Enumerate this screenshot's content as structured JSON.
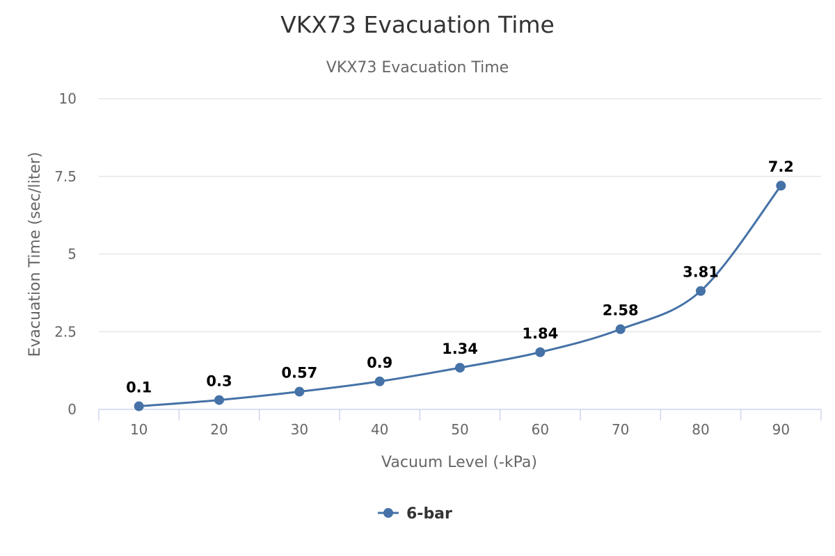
{
  "chart_data": {
    "type": "line",
    "title": "VKX73 Evacuation Time",
    "subtitle": "VKX73 Evacuation Time",
    "xlabel": "Vacuum Level (-kPa)",
    "ylabel": "Evacuation Time (sec/liter)",
    "categories": [
      "10",
      "20",
      "30",
      "40",
      "50",
      "60",
      "70",
      "80",
      "90"
    ],
    "y_ticks": [
      "0",
      "2.5",
      "5",
      "7.5",
      "10"
    ],
    "ylim": [
      0,
      10
    ],
    "grid": true,
    "legend_position": "bottom-center",
    "series": [
      {
        "name": "6-bar",
        "color": "#4572a7",
        "values": [
          0.1,
          0.3,
          0.57,
          0.9,
          1.34,
          1.84,
          2.58,
          3.81,
          7.2
        ],
        "data_labels": [
          "0.1",
          "0.3",
          "0.57",
          "0.9",
          "1.34",
          "1.84",
          "2.58",
          "3.81",
          "7.2"
        ]
      }
    ]
  }
}
